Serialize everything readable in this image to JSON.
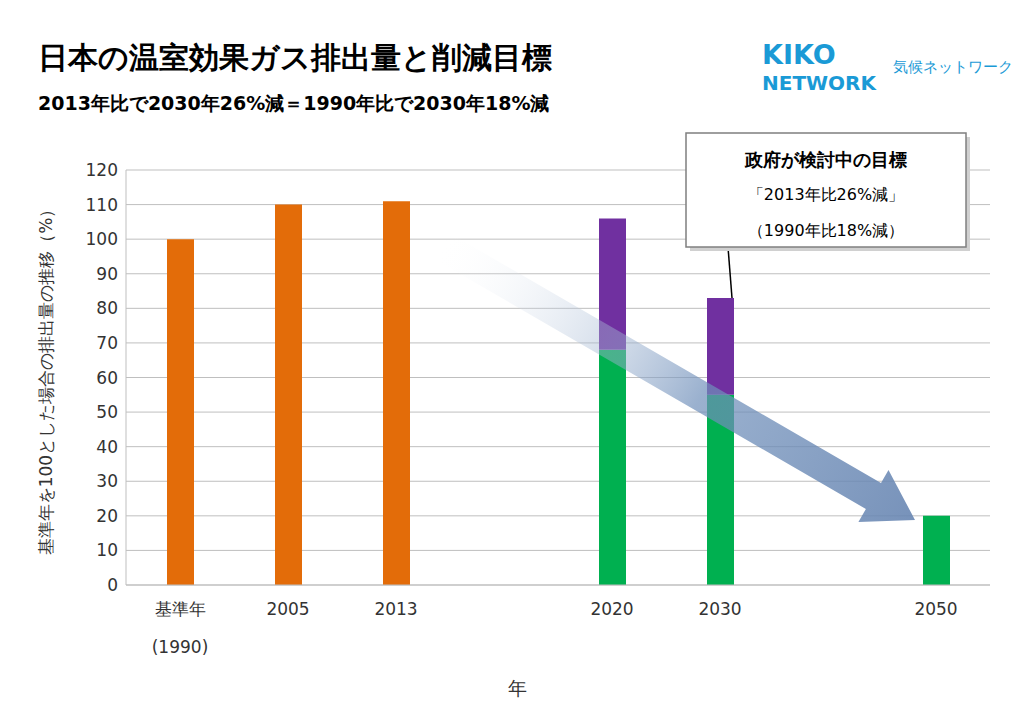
{
  "chart_data": {
    "type": "bar",
    "stacked": true,
    "grid": true,
    "title": "日本の温室効果ガス排出量と削減目標",
    "subtitle": "2013年比で2030年26%減＝1990年比で2030年18%減",
    "x_label": "年",
    "y_label": "基準年を100とした場合の排出量の推移（%）",
    "categories": [
      "基準年\n(1990)",
      "2005",
      "2013",
      null,
      "2020",
      "2030",
      null,
      "2050"
    ],
    "series": [
      {
        "color": "#e36c09",
        "values": [
          100,
          110,
          111,
          null,
          null,
          null,
          null,
          null
        ]
      },
      {
        "color": "#00b050",
        "values": [
          null,
          null,
          null,
          null,
          68,
          55,
          null,
          20
        ]
      },
      {
        "color": "#7030a0",
        "values": [
          null,
          null,
          null,
          null,
          38,
          28,
          null,
          null
        ]
      }
    ],
    "ylim": [
      0,
      120
    ],
    "yticks": [
      0,
      10,
      20,
      30,
      40,
      50,
      60,
      70,
      80,
      90,
      100,
      110,
      120
    ],
    "annotation": {
      "lines": [
        "政府が検討中の目標",
        "「2013年比26%減」",
        "（1990年比18%減）"
      ]
    },
    "logo": {
      "lines": [
        "KIKO",
        "NETWORK"
      ],
      "name": "気候ネットワーク"
    }
  }
}
